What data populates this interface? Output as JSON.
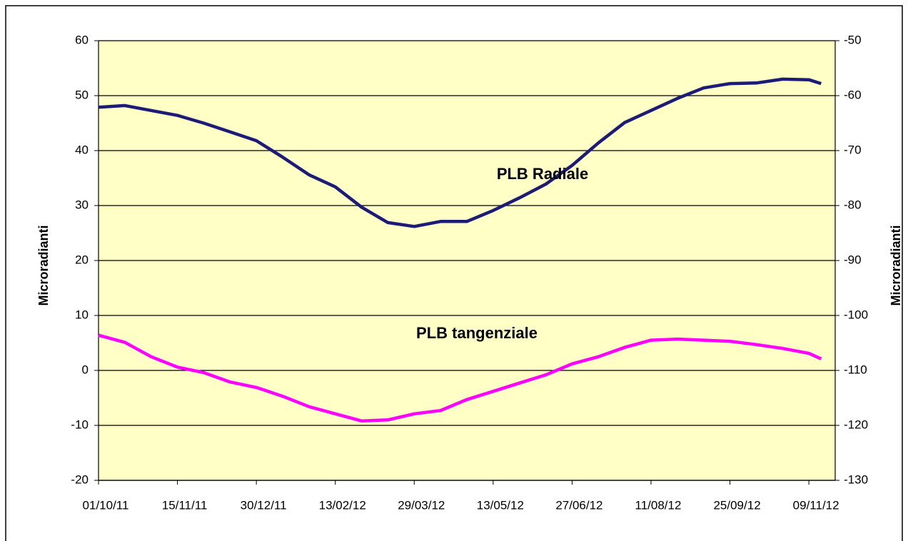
{
  "chart_data": {
    "type": "line",
    "y_label": "Microradianti",
    "y2_label": "Microradianti",
    "x": [
      "2011-10-01",
      "2011-10-16",
      "2011-10-31",
      "2011-11-15",
      "2011-11-30",
      "2011-12-15",
      "2011-12-30",
      "2012-01-14",
      "2012-01-29",
      "2012-02-13",
      "2012-02-28",
      "2012-03-14",
      "2012-03-29",
      "2012-04-13",
      "2012-04-28",
      "2012-05-13",
      "2012-05-28",
      "2012-06-12",
      "2012-06-27",
      "2012-07-12",
      "2012-07-27",
      "2012-08-11",
      "2012-08-26",
      "2012-09-10",
      "2012-09-25",
      "2012-10-10",
      "2012-10-25",
      "2012-11-09",
      "2012-11-16"
    ],
    "series": [
      {
        "name": "PLB Radiale",
        "color": "#1c1c78",
        "axis": "y",
        "values": [
          47.9,
          48.2,
          47.3,
          46.4,
          45,
          43.4,
          41.8,
          38.8,
          35.6,
          33.4,
          29.7,
          26.9,
          26.2,
          27.1,
          27.1,
          29.1,
          31.4,
          33.9,
          37.3,
          41.4,
          45.1,
          47.3,
          49.5,
          51.4,
          52.2,
          52.3,
          53,
          52.9,
          52.2
        ]
      },
      {
        "name": "PLB tangenziale",
        "color": "#ff00ff",
        "axis": "y2",
        "values": [
          -103.6,
          -104.9,
          -107.5,
          -109.4,
          -110.4,
          -112.1,
          -113.1,
          -114.7,
          -116.6,
          -117.9,
          -119.2,
          -119,
          -117.9,
          -117.3,
          -115.3,
          -113.8,
          -112.3,
          -110.8,
          -108.8,
          -107.5,
          -105.8,
          -104.5,
          -104.3,
          -104.5,
          -104.7,
          -105.3,
          -106,
          -106.9,
          -107.9
        ]
      }
    ],
    "xlim": [
      "2011-10-01",
      "2012-11-24"
    ],
    "xticks": [
      {
        "value": "2011-10-01",
        "label": "01/10/11"
      },
      {
        "value": "2011-11-15",
        "label": "15/11/11"
      },
      {
        "value": "2011-12-30",
        "label": "30/12/11"
      },
      {
        "value": "2012-02-13",
        "label": "13/02/12"
      },
      {
        "value": "2012-03-29",
        "label": "29/03/12"
      },
      {
        "value": "2012-05-13",
        "label": "13/05/12"
      },
      {
        "value": "2012-06-27",
        "label": "27/06/12"
      },
      {
        "value": "2012-08-11",
        "label": "11/08/12"
      },
      {
        "value": "2012-09-25",
        "label": "25/09/12"
      },
      {
        "value": "2012-11-09",
        "label": "09/11/12"
      }
    ],
    "ylim": [
      -20,
      60
    ],
    "yticks": [
      -20,
      -10,
      0,
      10,
      20,
      30,
      40,
      50,
      60
    ],
    "y2lim": [
      -130,
      -50
    ],
    "y2ticks": [
      -130,
      -120,
      -110,
      -100,
      -90,
      -80,
      -70,
      -60,
      -50
    ],
    "grid": true,
    "plot_background": "#ffffc6"
  }
}
